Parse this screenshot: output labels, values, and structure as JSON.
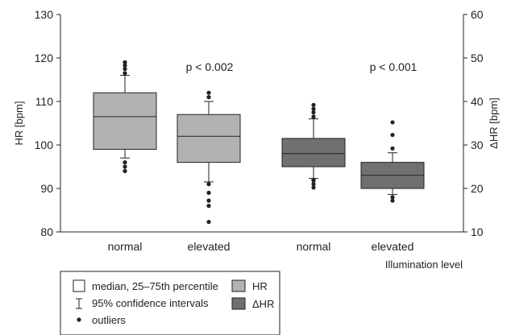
{
  "chart_data": {
    "type": "boxplot",
    "left_axis": {
      "label": "HR [bpm]",
      "ylim": [
        80,
        130
      ],
      "ticks": [
        "80",
        "90",
        "100",
        "110",
        "120",
        "130"
      ]
    },
    "right_axis": {
      "label": "ΔHR [bpm]",
      "ylim": [
        10,
        60
      ],
      "ticks": [
        "10",
        "20",
        "30",
        "40",
        "50",
        "60"
      ]
    },
    "xlabel": "Illumination level",
    "categories": [
      "normal",
      "elevated",
      "normal",
      "elevated"
    ],
    "annotations": [
      "p < 0.002",
      "p < 0.001"
    ],
    "colors": {
      "hr": "#b2b2b2",
      "dhr": "#707070"
    },
    "series": [
      {
        "name": "HR",
        "axis": "left",
        "boxes": [
          {
            "category": "normal",
            "whisker_low": 97,
            "q1": 99,
            "median": 106.5,
            "q3": 112,
            "whisker_high": 116,
            "outliers": [
              94,
              95,
              96,
              116.5,
              117.5,
              118.3,
              119
            ]
          },
          {
            "category": "elevated",
            "whisker_low": 91.5,
            "q1": 96,
            "median": 102,
            "q3": 107,
            "whisker_high": 110,
            "outliers": [
              82.3,
              86,
              87.2,
              89,
              91,
              111,
              112
            ]
          }
        ]
      },
      {
        "name": "ΔHR",
        "axis": "right",
        "boxes": [
          {
            "category": "normal",
            "whisker_low": 22.3,
            "q1": 25,
            "median": 28,
            "q3": 31.5,
            "whisker_high": 36,
            "outliers": [
              20.2,
              21,
              21.8,
              22,
              36.5,
              37.5,
              38.3,
              39.2
            ]
          },
          {
            "category": "elevated",
            "whisker_low": 18.6,
            "q1": 20,
            "median": 23,
            "q3": 26,
            "whisker_high": 28.2,
            "outliers": [
              17.2,
              18,
              29.2,
              32.3,
              35.2
            ]
          }
        ]
      }
    ],
    "legend": {
      "items": [
        "median, 25–75th percentile",
        "95% confidence intervals",
        "outliers",
        "HR",
        "ΔHR"
      ]
    }
  }
}
